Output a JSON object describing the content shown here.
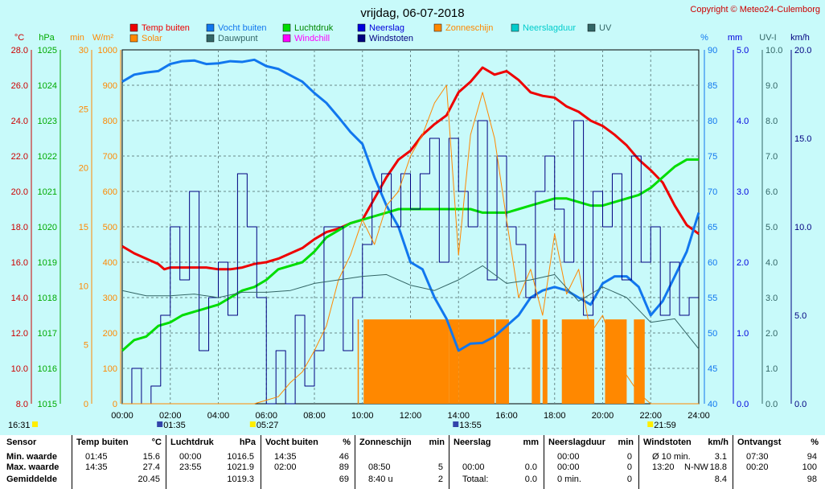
{
  "title": "vrijdag, 06-07-2018",
  "copyright": "Copyright © Meteo24-Culemborg",
  "colors": {
    "temp": "#ee0000",
    "vocht": "#1177ee",
    "luchtdruk": "#00dd00",
    "neerslag": "#0000dd",
    "windstoten": "#000080",
    "zonneschijn": "#ff8800",
    "solar": "#ff8800",
    "dauwpunt": "#336666",
    "windchill": "#ff00ff",
    "neerslagduur": "#00cccc",
    "uv": "#336666"
  },
  "legend": [
    {
      "label": "Temp buiten",
      "color": "#ee0000"
    },
    {
      "label": "Vocht buiten",
      "color": "#1177ee"
    },
    {
      "label": "Luchtdruk",
      "color": "#00dd00"
    },
    {
      "label": "Neerslag",
      "color": "#0000dd"
    },
    {
      "label": "Zonneschijn",
      "color": "#ff8800"
    },
    {
      "label": "Neerslagduur",
      "color": "#00cccc"
    },
    {
      "label": "UV",
      "color": "#336666"
    },
    {
      "label": "Solar",
      "color": "#ff8800"
    },
    {
      "label": "Dauwpunt",
      "color": "#336666"
    },
    {
      "label": "Windchill",
      "color": "#ff00ff"
    },
    {
      "label": "Windstoten",
      "color": "#000080"
    }
  ],
  "axis_units": {
    "celsius": "°C",
    "hpa": "hPa",
    "min": "min",
    "wm2": "W/m²",
    "pct": "%",
    "mm": "mm",
    "uvi": "UV-I",
    "kmh": "km/h"
  },
  "chart_data": {
    "type": "line",
    "x_ticks": [
      "00:00",
      "02:00",
      "04:00",
      "06:00",
      "08:00",
      "10:00",
      "12:00",
      "14:00",
      "16:00",
      "18:00",
      "20:00",
      "22:00",
      "24:00"
    ],
    "xlim_hours": [
      0,
      24
    ],
    "y_axes": {
      "temp_c": {
        "ylim": [
          8,
          28
        ],
        "ticks": [
          "8.0",
          "10.0",
          "12.0",
          "14.0",
          "16.0",
          "18.0",
          "20.0",
          "22.0",
          "24.0",
          "26.0",
          "28.0"
        ]
      },
      "pressure_hpa": {
        "ylim": [
          1015,
          1025
        ],
        "ticks": [
          "1015",
          "1016",
          "1017",
          "1018",
          "1019",
          "1020",
          "1021",
          "1022",
          "1023",
          "1024",
          "1025"
        ]
      },
      "sunshine_min": {
        "ylim": [
          0,
          30
        ],
        "ticks": [
          "0",
          "5",
          "10",
          "15",
          "20",
          "25",
          "30"
        ]
      },
      "solar_wm2": {
        "ylim": [
          0,
          1000
        ],
        "ticks": [
          "0",
          "100",
          "200",
          "300",
          "400",
          "500",
          "600",
          "700",
          "800",
          "900",
          "1000"
        ]
      },
      "humidity_pct": {
        "ylim": [
          40,
          90
        ],
        "ticks": [
          "40",
          "45",
          "50",
          "55",
          "60",
          "65",
          "70",
          "75",
          "80",
          "85",
          "90"
        ]
      },
      "rain_mm": {
        "ylim": [
          0,
          5
        ],
        "ticks": [
          "0.0",
          "1.0",
          "2.0",
          "3.0",
          "4.0",
          "5.0"
        ]
      },
      "uv_index": {
        "ylim": [
          0,
          10
        ],
        "ticks": [
          "0.0",
          "1.0",
          "2.0",
          "3.0",
          "4.0",
          "5.0",
          "6.0",
          "7.0",
          "8.0",
          "9.0",
          "10.0"
        ]
      },
      "wind_kmh": {
        "ylim": [
          0,
          20
        ],
        "ticks": [
          "0.0",
          "5.0",
          "10.0",
          "15.0",
          "20.0"
        ]
      }
    },
    "series": [
      {
        "name": "Temp buiten",
        "axis": "temp_c",
        "x": [
          0,
          0.5,
          1,
          1.5,
          1.75,
          2,
          2.5,
          3,
          3.5,
          4,
          4.5,
          5,
          5.5,
          6,
          6.5,
          7,
          7.5,
          8,
          8.5,
          9,
          9.5,
          10,
          10.5,
          11,
          11.5,
          12,
          12.5,
          13,
          13.5,
          14,
          14.5,
          15,
          15.5,
          16,
          16.5,
          17,
          17.5,
          18,
          18.5,
          19,
          19.5,
          20,
          20.5,
          21,
          21.5,
          22,
          22.5,
          23,
          23.5,
          24
        ],
        "y": [
          16.9,
          16.5,
          16.2,
          15.9,
          15.6,
          15.7,
          15.7,
          15.7,
          15.7,
          15.6,
          15.6,
          15.7,
          15.9,
          16.0,
          16.2,
          16.5,
          16.8,
          17.3,
          17.7,
          17.9,
          18.2,
          18.4,
          19.6,
          20.8,
          21.8,
          22.3,
          23.2,
          23.8,
          24.3,
          25.6,
          26.2,
          27.0,
          26.6,
          26.8,
          26.3,
          25.6,
          25.4,
          25.3,
          24.8,
          24.5,
          24.0,
          23.7,
          23.2,
          22.6,
          21.8,
          21.2,
          20.5,
          19.2,
          18.1,
          17.6
        ]
      },
      {
        "name": "Vocht buiten",
        "axis": "humidity_pct",
        "x": [
          0,
          0.5,
          1,
          1.5,
          2,
          2.5,
          3,
          3.5,
          4,
          4.5,
          5,
          5.5,
          6,
          6.5,
          7,
          7.5,
          8,
          8.5,
          9,
          9.5,
          10,
          10.5,
          11,
          11.5,
          12,
          12.5,
          13,
          13.5,
          14,
          14.5,
          15,
          15.5,
          16,
          16.5,
          17,
          17.5,
          18,
          18.5,
          19,
          19.5,
          20,
          20.5,
          21,
          21.5,
          22,
          22.5,
          23,
          23.5,
          24
        ],
        "y": [
          85.5,
          86.5,
          86.8,
          87,
          88,
          88.4,
          88.5,
          88,
          88.1,
          88.4,
          88.3,
          88.6,
          87.7,
          87.3,
          86.4,
          85.5,
          83.9,
          82.5,
          80.5,
          78.4,
          76.7,
          72,
          68,
          65,
          60,
          59,
          55,
          52,
          47.5,
          48.5,
          48.6,
          49.5,
          51,
          52.5,
          55,
          56,
          56.5,
          56,
          55,
          54,
          57,
          58,
          58,
          56.5,
          52.5,
          54.5,
          58,
          61.5,
          67
        ]
      },
      {
        "name": "Luchtdruk",
        "axis": "pressure_hpa",
        "x": [
          0,
          0.5,
          1,
          1.5,
          2,
          2.5,
          3,
          3.5,
          4,
          4.5,
          5,
          5.5,
          6,
          6.5,
          7,
          7.5,
          8,
          8.5,
          9,
          9.5,
          10,
          10.5,
          11,
          11.5,
          12,
          12.5,
          13,
          13.5,
          14,
          14.5,
          15,
          15.5,
          16,
          16.5,
          17,
          17.5,
          18,
          18.5,
          19,
          19.5,
          20,
          20.5,
          21,
          21.5,
          22,
          22.5,
          23,
          23.5,
          24
        ],
        "y": [
          1016.5,
          1016.8,
          1016.9,
          1017.2,
          1017.3,
          1017.5,
          1017.6,
          1017.7,
          1017.8,
          1018.0,
          1018.2,
          1018.3,
          1018.5,
          1018.8,
          1018.9,
          1019.0,
          1019.3,
          1019.7,
          1019.9,
          1020.1,
          1020.2,
          1020.3,
          1020.4,
          1020.5,
          1020.5,
          1020.5,
          1020.5,
          1020.5,
          1020.5,
          1020.5,
          1020.4,
          1020.4,
          1020.4,
          1020.5,
          1020.6,
          1020.7,
          1020.8,
          1020.8,
          1020.7,
          1020.6,
          1020.6,
          1020.7,
          1020.8,
          1020.9,
          1021.1,
          1021.4,
          1021.7,
          1021.9,
          1021.9
        ]
      },
      {
        "name": "Windstoten",
        "axis": "wind_kmh",
        "x": [
          0,
          0.4,
          0.8,
          1.2,
          1.6,
          2,
          2.4,
          2.8,
          3.2,
          3.6,
          4,
          4.4,
          4.8,
          5.2,
          5.6,
          6,
          6.4,
          6.8,
          7.2,
          7.6,
          8,
          8.4,
          8.8,
          9.2,
          9.6,
          10,
          10.4,
          10.8,
          11.2,
          11.6,
          12,
          12.4,
          12.8,
          13.2,
          13.6,
          14,
          14.4,
          14.8,
          15.2,
          15.6,
          16,
          16.4,
          16.8,
          17.2,
          17.6,
          18,
          18.4,
          18.8,
          19.2,
          19.6,
          20,
          20.4,
          20.8,
          21.2,
          21.6,
          22,
          22.4,
          22.8,
          23.2,
          23.6,
          24
        ],
        "y": [
          0,
          2,
          0,
          1,
          5,
          10,
          7,
          12,
          3,
          6,
          8,
          5,
          13,
          10,
          6,
          0,
          3,
          0,
          5,
          1,
          3,
          10,
          10,
          3,
          6,
          9,
          12,
          13,
          10,
          13,
          11,
          13,
          15,
          8,
          15,
          12,
          10,
          16,
          7,
          14,
          10,
          9,
          6,
          12,
          14,
          11,
          8,
          16,
          5,
          12,
          10,
          13,
          7,
          14,
          8,
          10,
          5,
          8,
          5,
          6,
          6
        ]
      },
      {
        "name": "Solar",
        "axis": "solar_wm2",
        "x": [
          0,
          5.5,
          6,
          6.5,
          7,
          7.5,
          8,
          8.5,
          9,
          9.5,
          10,
          10.5,
          11,
          11.5,
          12,
          12.5,
          13,
          13.5,
          14,
          14.5,
          15,
          15.5,
          16,
          16.5,
          17,
          17.5,
          18,
          18.5,
          19,
          19.5,
          20,
          20.5,
          21,
          21.5,
          22,
          24
        ],
        "y": [
          0,
          0,
          10,
          20,
          60,
          90,
          150,
          220,
          350,
          420,
          520,
          450,
          560,
          600,
          700,
          760,
          850,
          900,
          420,
          760,
          880,
          750,
          520,
          300,
          380,
          250,
          480,
          310,
          380,
          200,
          250,
          150,
          80,
          30,
          0,
          0
        ]
      },
      {
        "name": "Dauwpunt",
        "axis": "temp_c",
        "x": [
          0,
          1,
          2,
          3,
          4,
          5,
          6,
          7,
          8,
          9,
          10,
          11,
          12,
          13,
          14,
          15,
          16,
          17,
          18,
          19,
          20,
          21,
          22,
          23,
          24
        ],
        "y": [
          14.4,
          14.1,
          14.1,
          14.2,
          14.0,
          14.3,
          14.3,
          14.4,
          14.8,
          15.0,
          15.2,
          15.3,
          14.7,
          14.4,
          15.0,
          15.8,
          14.8,
          15.0,
          15.3,
          13.8,
          14.6,
          14.0,
          12.6,
          12.8,
          11.1
        ]
      }
    ],
    "zonneschijn_blocks_hours": [
      [
        9.8,
        9.85
      ],
      [
        10.05,
        13.6
      ],
      [
        13.6,
        14.0
      ],
      [
        14.0,
        15.5
      ],
      [
        15.55,
        16.1
      ],
      [
        17.05,
        17.4
      ],
      [
        17.5,
        17.7
      ],
      [
        18.3,
        19.65
      ],
      [
        20.1,
        21.0
      ],
      [
        21.3,
        21.75
      ]
    ],
    "day_markers": [
      {
        "label": "16:31",
        "hour": 0
      },
      {
        "label": "01:35",
        "hour": 1.58
      },
      {
        "label": "05:27",
        "hour": 5.45
      },
      {
        "label": "13:55",
        "hour": 13.9
      },
      {
        "label": "21:59",
        "hour": 22.0
      }
    ]
  },
  "stats": {
    "sensor": {
      "header": "Sensor",
      "rows": [
        "Min. waarde",
        "Max. waarde",
        "Gemiddelde"
      ]
    },
    "temp": {
      "header": "Temp buiten",
      "unit": "°C",
      "times": [
        "01:45",
        "14:35",
        ""
      ],
      "values": [
        "15.6",
        "27.4",
        "20.45"
      ]
    },
    "luchtdruk": {
      "header": "Luchtdruk",
      "unit": "hPa",
      "times": [
        "00:00",
        "23:55",
        ""
      ],
      "values": [
        "1016.5",
        "1021.9",
        "1019.3"
      ]
    },
    "vocht": {
      "header": "Vocht buiten",
      "unit": "%",
      "times": [
        "14:35",
        "02:00",
        ""
      ],
      "values": [
        "46",
        "89",
        "69"
      ]
    },
    "zonneschijn": {
      "header": "Zonneschijn",
      "unit": "min",
      "times": [
        "",
        "08:50",
        "8:40 u"
      ],
      "values": [
        "",
        "5",
        "2"
      ]
    },
    "neerslag": {
      "header": "Neerslag",
      "unit": "mm",
      "times": [
        "",
        "00:00",
        "Totaal:"
      ],
      "values": [
        "",
        "0.0",
        "0.0"
      ]
    },
    "neerslagduur": {
      "header": "Neerslagduur",
      "unit": "min",
      "times": [
        "00:00",
        "00:00",
        "0 min."
      ],
      "values": [
        "0",
        "0",
        "0"
      ]
    },
    "windstoten": {
      "header": "Windstoten",
      "unit": "km/h",
      "times": [
        "Ø 10 min.",
        "13:20",
        ""
      ],
      "dirs": [
        "",
        "N-NW",
        ""
      ],
      "values": [
        "3.1",
        "18.8",
        "8.4"
      ]
    },
    "ontvangst": {
      "header": "Ontvangst",
      "unit": "%",
      "times": [
        "07:30",
        "00:20",
        ""
      ],
      "values": [
        "94",
        "100",
        "98"
      ]
    }
  }
}
